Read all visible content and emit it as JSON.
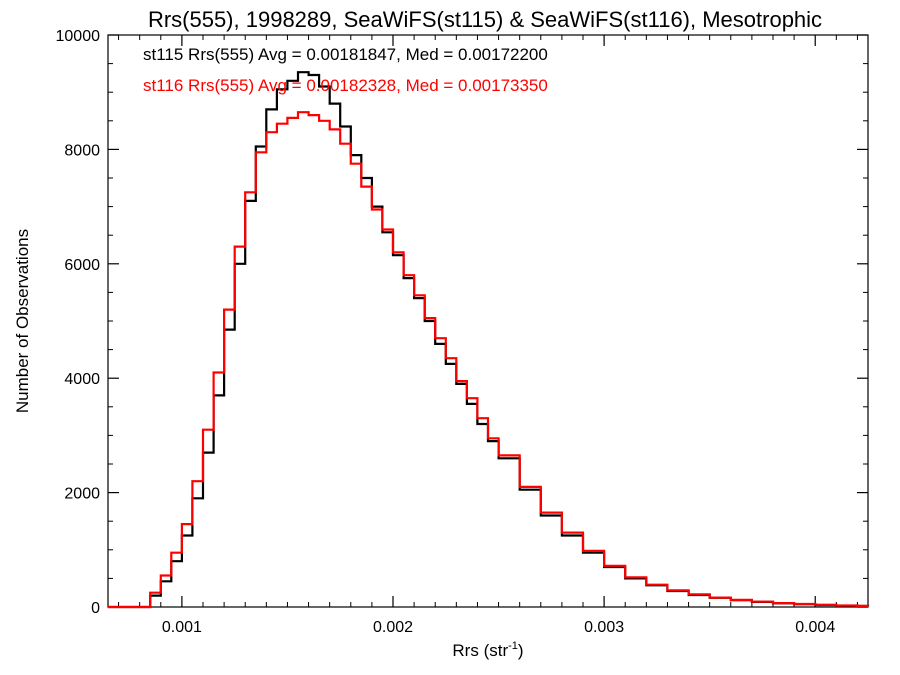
{
  "chart_data": {
    "type": "line",
    "title": "Rrs(555), 1998289, SeaWiFS(st115) & SeaWiFS(st116), Mesotrophic",
    "xlabel": "Rrs (str",
    "xlabel_sup": "-1",
    "xlabel_close": ")",
    "ylabel": "Number of Observations",
    "xlim": [
      0.00065,
      0.00425
    ],
    "ylim": [
      0,
      10000
    ],
    "x_ticks": [
      0.001,
      0.002,
      0.003,
      0.004
    ],
    "x_tick_labels": [
      "0.001",
      "0.002",
      "0.003",
      "0.004"
    ],
    "y_ticks": [
      0,
      2000,
      4000,
      6000,
      8000,
      10000
    ],
    "y_tick_labels": [
      "0",
      "2000",
      "4000",
      "6000",
      "8000",
      "10000"
    ],
    "grid": false,
    "legend": "top-left",
    "series": [
      {
        "name": "st115",
        "label": "st115 Rrs(555) Avg = 0.00181847, Med = 0.00172200",
        "color": "#000000",
        "x": [
          0.00065,
          0.0008,
          0.00085,
          0.0009,
          0.00095,
          0.001,
          0.00105,
          0.0011,
          0.00115,
          0.0012,
          0.00125,
          0.0013,
          0.00135,
          0.0014,
          0.00145,
          0.0015,
          0.00155,
          0.0016,
          0.00165,
          0.0017,
          0.00175,
          0.0018,
          0.00185,
          0.0019,
          0.00195,
          0.002,
          0.00205,
          0.0021,
          0.00215,
          0.0022,
          0.00225,
          0.0023,
          0.00235,
          0.0024,
          0.00245,
          0.0025,
          0.0026,
          0.0027,
          0.0028,
          0.0029,
          0.003,
          0.0031,
          0.0032,
          0.0033,
          0.0034,
          0.0035,
          0.0036,
          0.0037,
          0.0038,
          0.0039,
          0.004,
          0.0041,
          0.0042,
          0.00425
        ],
        "values": [
          0,
          0,
          200,
          450,
          800,
          1250,
          1900,
          2700,
          3700,
          4850,
          6000,
          7100,
          8050,
          8700,
          9050,
          9200,
          9350,
          9300,
          9100,
          8800,
          8400,
          7900,
          7500,
          7000,
          6550,
          6150,
          5750,
          5400,
          5000,
          4600,
          4250,
          3900,
          3550,
          3200,
          2900,
          2600,
          2050,
          1600,
          1250,
          950,
          700,
          500,
          380,
          280,
          210,
          160,
          120,
          90,
          65,
          50,
          35,
          25,
          18,
          15
        ]
      },
      {
        "name": "st116",
        "label": "st116 Rrs(555) Avg = 0.00182328, Med = 0.00173350",
        "color": "#ff0000",
        "x": [
          0.00065,
          0.0008,
          0.00085,
          0.0009,
          0.00095,
          0.001,
          0.00105,
          0.0011,
          0.00115,
          0.0012,
          0.00125,
          0.0013,
          0.00135,
          0.0014,
          0.00145,
          0.0015,
          0.00155,
          0.0016,
          0.00165,
          0.0017,
          0.00175,
          0.0018,
          0.00185,
          0.0019,
          0.00195,
          0.002,
          0.00205,
          0.0021,
          0.00215,
          0.0022,
          0.00225,
          0.0023,
          0.00235,
          0.0024,
          0.00245,
          0.0025,
          0.0026,
          0.0027,
          0.0028,
          0.0029,
          0.003,
          0.0031,
          0.0032,
          0.0033,
          0.0034,
          0.0035,
          0.0036,
          0.0037,
          0.0038,
          0.0039,
          0.004,
          0.0041,
          0.0042,
          0.00425
        ],
        "values": [
          0,
          0,
          250,
          550,
          950,
          1450,
          2200,
          3100,
          4100,
          5200,
          6300,
          7250,
          7950,
          8300,
          8450,
          8550,
          8650,
          8600,
          8500,
          8350,
          8100,
          7750,
          7350,
          6950,
          6600,
          6200,
          5800,
          5450,
          5050,
          4700,
          4350,
          3950,
          3650,
          3300,
          2950,
          2650,
          2100,
          1650,
          1300,
          980,
          720,
          520,
          390,
          290,
          220,
          165,
          125,
          92,
          68,
          52,
          38,
          27,
          20,
          15
        ]
      }
    ]
  }
}
